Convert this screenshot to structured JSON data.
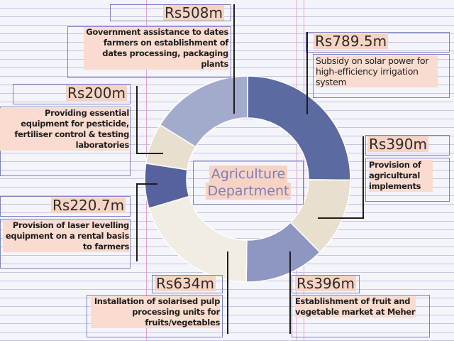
{
  "chart_data": {
    "type": "pie",
    "center_title": [
      "Agriculture",
      "Department"
    ],
    "slices": [
      {
        "amount": "Rs789.5m",
        "value": 789.5,
        "description": "Subsidy on solar power for high-efficiency irrigation system",
        "color": "#5b6aa0"
      },
      {
        "amount": "Rs390m",
        "value": 390,
        "description": "Provision of agricultural implements",
        "color": "#e8dfce"
      },
      {
        "amount": "Rs396m",
        "value": 396,
        "description": "Establishment of fruit and vegetable market at Meher",
        "color": "#8e97c2"
      },
      {
        "amount": "Rs634m",
        "value": 634,
        "description": "Installation of solarised pulp processing units for fruits/vegetables",
        "color": "#f1ede3"
      },
      {
        "amount": "Rs220.7m",
        "value": 220.7,
        "description": "Provision of laser levelling equipment on a rental basis to farmers",
        "color": "#56629e"
      },
      {
        "amount": "Rs200m",
        "value": 200,
        "description": "Providing essential equipment for pesticide, fertiliser control & testing laboratories",
        "color": "#e8dfce"
      },
      {
        "amount": "Rs508m",
        "value": 508,
        "description": "Government assistance to dates farmers on establishment of dates processing, packaging plants",
        "color": "#a3abcd"
      }
    ]
  }
}
